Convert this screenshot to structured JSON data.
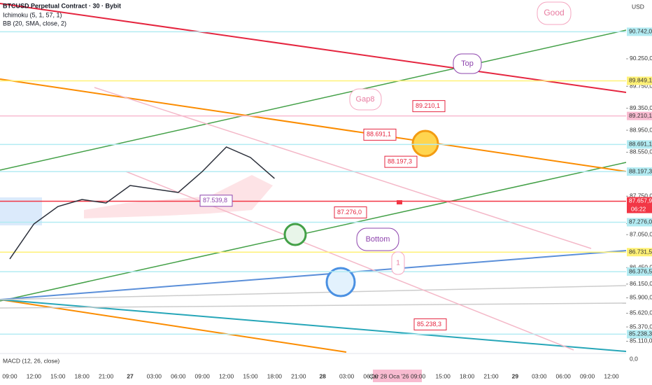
{
  "chart_data": {
    "type": "line",
    "title": "BTCUSD Perpetual Contract · 30 · Bybit",
    "indicators": [
      "Ichimoku (5, 1, 57, 1)",
      "BB (20, SMA, close, 2)"
    ],
    "currency": "USD",
    "macd_label": "MACD (12, 26, close)",
    "macd_zero": "0,0",
    "cursor_time": "Çar 28 Oca '26  09:00",
    "countdown": "06:22",
    "categories": [
      "09:00",
      "12:00",
      "15:00",
      "18:00",
      "21:00",
      "27",
      "03:00",
      "06:00",
      "09:00",
      "12:00",
      "15:00",
      "18:00",
      "21:00",
      "28",
      "03:00",
      "06:00",
      null,
      null,
      "15:00",
      "18:00",
      "21:00",
      "29",
      "03:00",
      "06:00",
      "09:00",
      "12:00"
    ],
    "series": [
      {
        "name": "BTCUSD",
        "color": "#2a2e39",
        "values": [
          86607,
          87244,
          87562,
          87689,
          87626,
          87944,
          87880,
          87817,
          88199,
          88645,
          88454,
          88072,
          null,
          null,
          null,
          null,
          null,
          null,
          null,
          null,
          null,
          null,
          null,
          null,
          null,
          null
        ]
      }
    ],
    "ylim": [
      84887,
      91320
    ],
    "yticks": [
      {
        "value": 90250,
        "label": "90.250,0"
      },
      {
        "value": 89750,
        "label": "89.750,0"
      },
      {
        "value": 89350,
        "label": "89.350,0"
      },
      {
        "value": 88950,
        "label": "88.950,0"
      },
      {
        "value": 88550,
        "label": "88.550,0"
      },
      {
        "value": 87750,
        "label": "87.750,0"
      },
      {
        "value": 87250,
        "label": "87.250,0"
      },
      {
        "value": 87050,
        "label": "87.050,0"
      },
      {
        "value": 86450,
        "label": "86.450,0"
      },
      {
        "value": 86150,
        "label": "86.150,0"
      },
      {
        "value": 85900,
        "label": "85.900,0"
      },
      {
        "value": 85620,
        "label": "85.620,0"
      },
      {
        "value": 85370,
        "label": "85.370,0"
      },
      {
        "value": 85110,
        "label": "85.110,0"
      }
    ],
    "price_labels": [
      {
        "value": 90742,
        "label": "90.742,0",
        "color": "#b2ebf2"
      },
      {
        "value": 89849.1,
        "label": "89.849,1",
        "color": "#fff176"
      },
      {
        "value": 89210.1,
        "label": "89.210,1",
        "color": "#f8bbd0"
      },
      {
        "value": 88691.1,
        "label": "88.691,1",
        "color": "#b2ebf2"
      },
      {
        "value": 88197.3,
        "label": "88.197,3",
        "color": "#b2ebf2"
      },
      {
        "value": 87657.9,
        "label": "87.657,9",
        "color": "#f23645"
      },
      {
        "value": 87276,
        "label": "87.276,0",
        "color": "#b2ebf2"
      },
      {
        "value": 86731.5,
        "label": "86.731,5",
        "color": "#fff176"
      },
      {
        "value": 86376.5,
        "label": "86.376,5",
        "color": "#b2ebf2"
      },
      {
        "value": 85238.3,
        "label": "85.238,3",
        "color": "#b2ebf2"
      }
    ],
    "annotations": [
      "Good",
      "Top",
      "Gap8",
      "Bottom",
      "1"
    ],
    "callouts": [
      {
        "value": 89210.1,
        "label": "89.210,1"
      },
      {
        "value": 88691.1,
        "label": "88.691,1"
      },
      {
        "value": 88197.3,
        "label": "88.197,3"
      },
      {
        "value": 87539.8,
        "label": "87.539,8"
      },
      {
        "value": 87276,
        "label": "87.276,0"
      },
      {
        "value": 85238.3,
        "label": "85.238,3"
      }
    ]
  }
}
